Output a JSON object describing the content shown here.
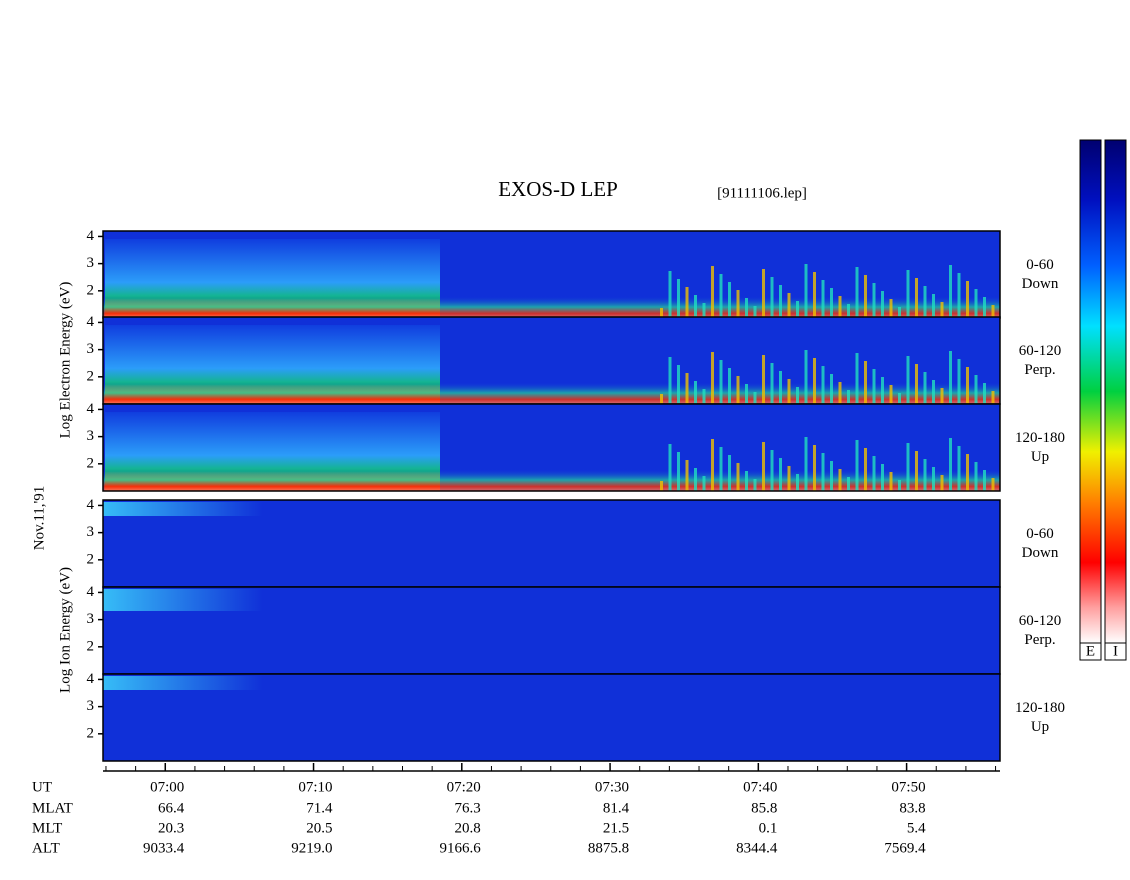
{
  "title": "EXOS-D LEP",
  "file": "[91111106.lep]",
  "date": "Nov.11,'91",
  "y_labels": [
    "Log Electron Energy (eV)",
    "Log Ion Energy (eV)"
  ],
  "x_axis": {
    "name": "UT",
    "xlim": [
      -4.2,
      56.3
    ],
    "xticks": [
      {
        "value": 0,
        "label": "07:00"
      },
      {
        "value": 10,
        "label": "07:10"
      },
      {
        "value": 20,
        "label": "07:20"
      },
      {
        "value": 30,
        "label": "07:30"
      },
      {
        "value": 40,
        "label": "07:40"
      },
      {
        "value": 50,
        "label": "07:50"
      }
    ]
  },
  "table": {
    "rows": [
      {
        "label": "MLAT",
        "values": [
          "66.4",
          "71.4",
          "76.3",
          "81.4",
          "85.8",
          "83.8"
        ]
      },
      {
        "label": "MLT",
        "values": [
          "20.3",
          "20.5",
          "20.8",
          "21.5",
          "0.1",
          "5.4"
        ]
      },
      {
        "label": "ALT",
        "values": [
          "9033.4",
          "9219.0",
          "9166.6",
          "8875.8",
          "8344.4",
          "7569.4"
        ]
      }
    ]
  },
  "colorbars": [
    "E",
    "I"
  ],
  "chart_data": [
    {
      "type": "spectrogram",
      "label": "0-60",
      "sublabel": "Down",
      "ylim": [
        1,
        4.2
      ],
      "yticks": [
        2,
        3,
        4
      ]
    },
    {
      "type": "spectrogram",
      "label": "60-120",
      "sublabel": "Perp.",
      "ylim": [
        1,
        4.2
      ],
      "yticks": [
        2,
        3,
        4
      ]
    },
    {
      "type": "spectrogram",
      "label": "120-180",
      "sublabel": "Up",
      "ylim": [
        1,
        4.2
      ],
      "yticks": [
        2,
        3,
        4
      ]
    },
    {
      "type": "spectrogram",
      "label": "0-60",
      "sublabel": "Down",
      "ylim": [
        1,
        4.2
      ],
      "yticks": [
        2,
        3,
        4
      ]
    },
    {
      "type": "spectrogram",
      "label": "60-120",
      "sublabel": "Perp.",
      "ylim": [
        1,
        4.2
      ],
      "yticks": [
        2,
        3,
        4
      ]
    },
    {
      "type": "spectrogram",
      "label": "120-180",
      "sublabel": "Up",
      "ylim": [
        1,
        4.2
      ],
      "yticks": [
        2,
        3,
        4
      ]
    }
  ]
}
